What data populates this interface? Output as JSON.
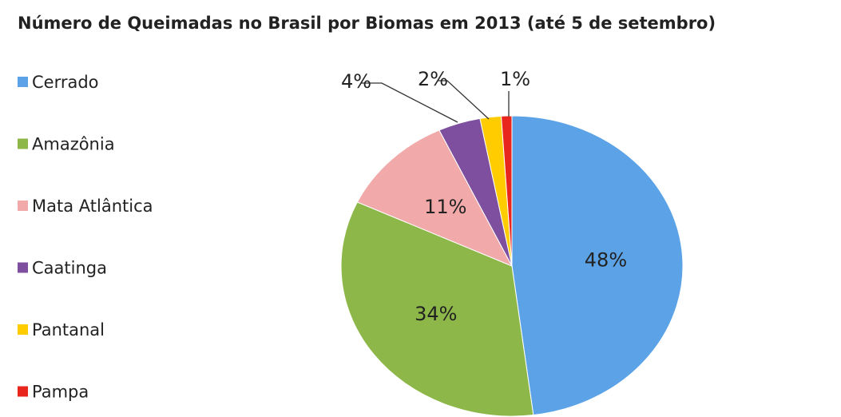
{
  "chart_data": {
    "type": "pie",
    "title": "Número de Queimadas no Brasil por Biomas em 2013  (até 5 de setembro)",
    "categories": [
      "Cerrado",
      "Amazônia",
      "Mata Atlântica",
      "Caatinga",
      "Pantanal",
      "Pampa"
    ],
    "values": [
      48,
      34,
      11,
      4,
      2,
      1
    ],
    "value_labels": [
      "48%",
      "34%",
      "11%",
      "4%",
      "2%",
      "1%"
    ],
    "colors": [
      "#5ba3e6",
      "#8db849",
      "#f2a9a9",
      "#7d4f9e",
      "#ffcc00",
      "#e8261d"
    ],
    "legend": "left"
  }
}
